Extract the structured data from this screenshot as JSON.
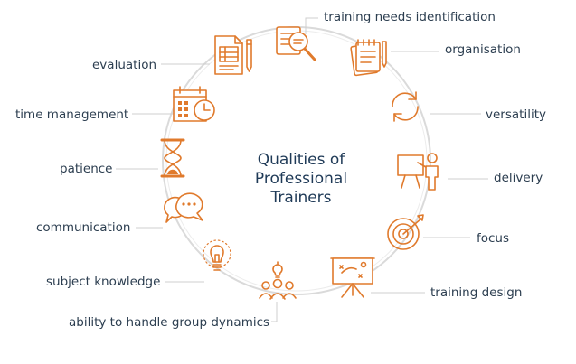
{
  "diagram": {
    "title_lines": [
      "Qualities of",
      "Professional",
      "Trainers"
    ],
    "accent_color": "#e07a2c",
    "ring_color": "#dadada",
    "text_color": "#2c3e50",
    "items": [
      {
        "label": "training needs identification",
        "icon": "magnifier-document-icon"
      },
      {
        "label": "organisation",
        "icon": "notepad-icon"
      },
      {
        "label": "versatility",
        "icon": "refresh-cycle-icon"
      },
      {
        "label": "delivery",
        "icon": "presenter-board-icon"
      },
      {
        "label": "focus",
        "icon": "target-arrow-icon"
      },
      {
        "label": "training design",
        "icon": "strategy-board-icon"
      },
      {
        "label": "ability to handle group dynamics",
        "icon": "team-idea-icon"
      },
      {
        "label": "subject knowledge",
        "icon": "lightbulb-icon"
      },
      {
        "label": "communication",
        "icon": "speech-bubbles-icon"
      },
      {
        "label": "patience",
        "icon": "hourglass-icon"
      },
      {
        "label": "time management",
        "icon": "calendar-clock-icon"
      },
      {
        "label": "evaluation",
        "icon": "checklist-pen-icon"
      }
    ]
  }
}
